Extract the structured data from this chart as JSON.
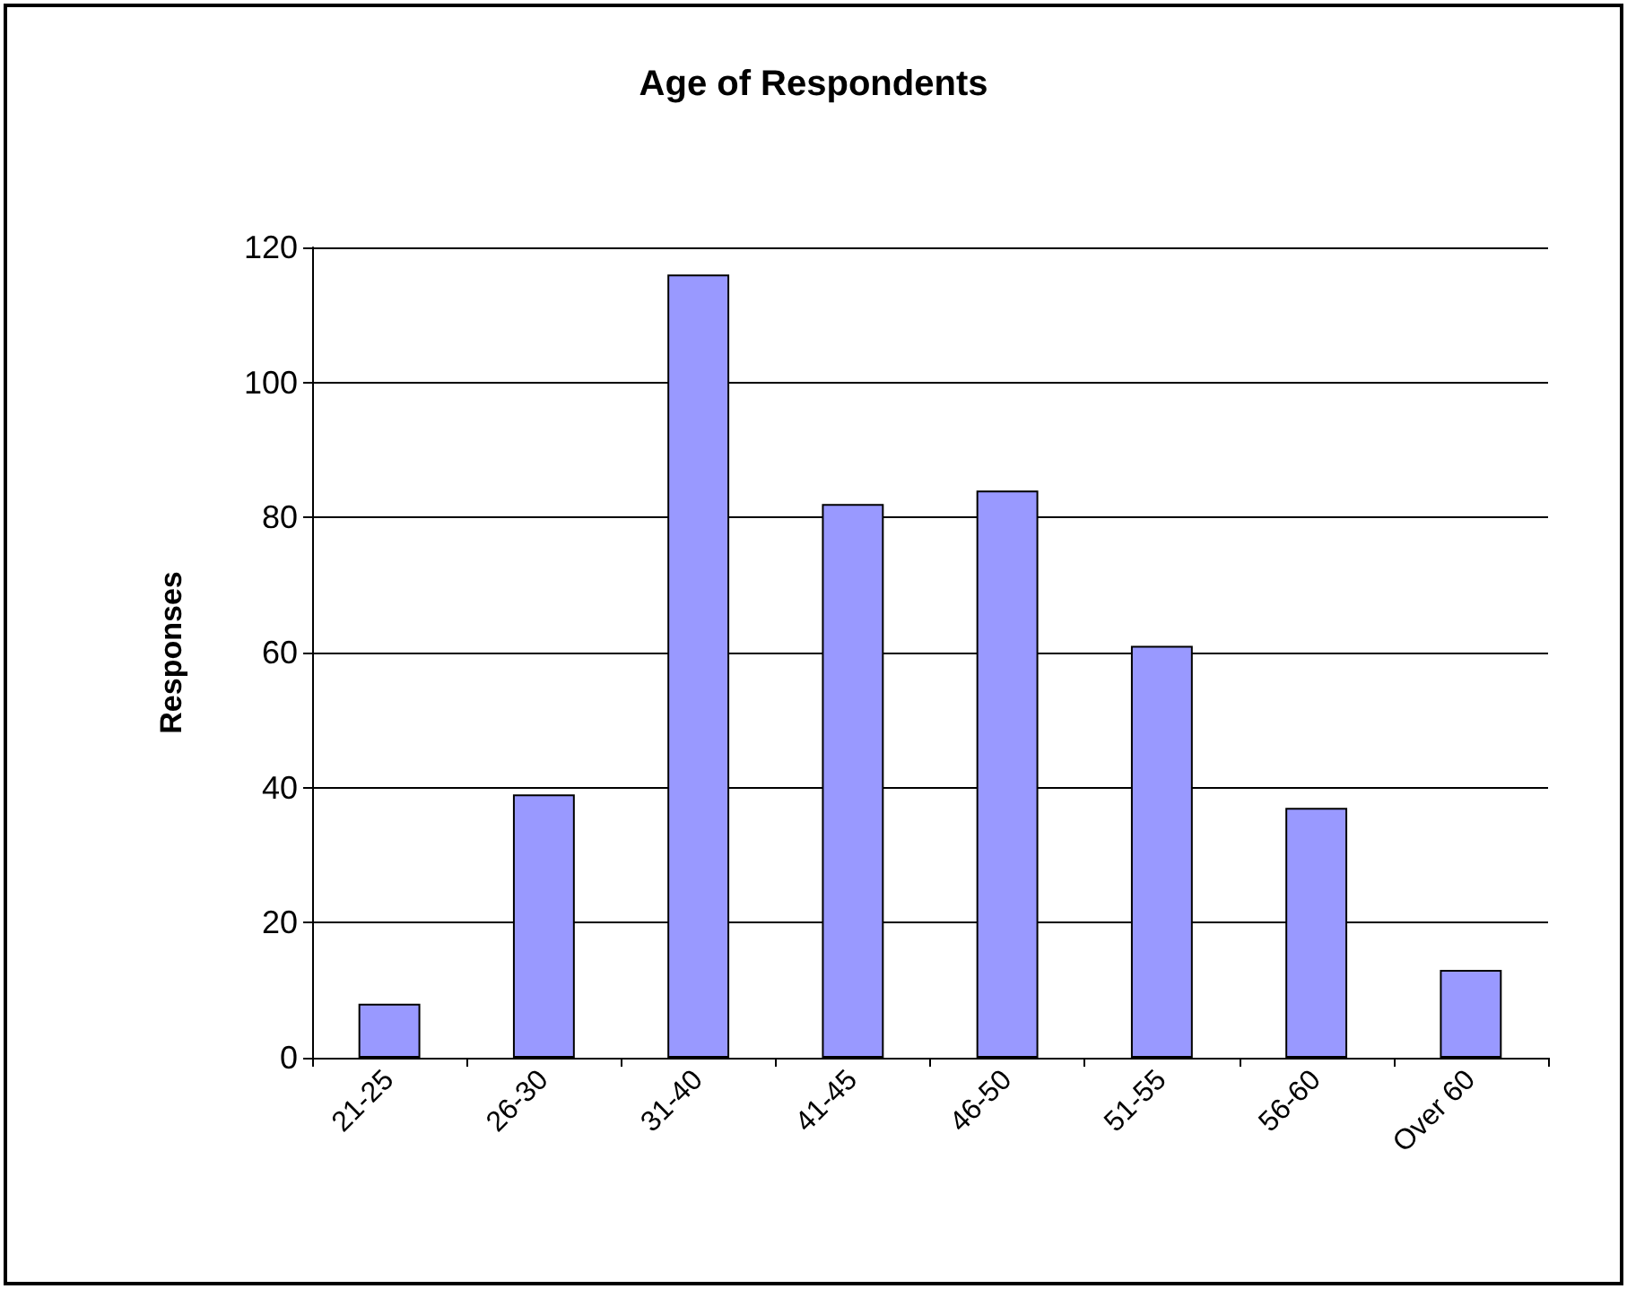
{
  "chart_data": {
    "type": "bar",
    "title": "Age of Respondents",
    "ylabel": "Responses",
    "categories": [
      "21-25",
      "26-30",
      "31-40",
      "41-45",
      "46-50",
      "51-55",
      "56-60",
      "Over 60"
    ],
    "values": [
      8,
      39,
      116,
      82,
      84,
      61,
      37,
      13
    ],
    "color": "#9999ff",
    "ylim": [
      0,
      120
    ],
    "yticks": [
      0,
      20,
      40,
      60,
      80,
      100,
      120
    ],
    "grid": "y"
  }
}
